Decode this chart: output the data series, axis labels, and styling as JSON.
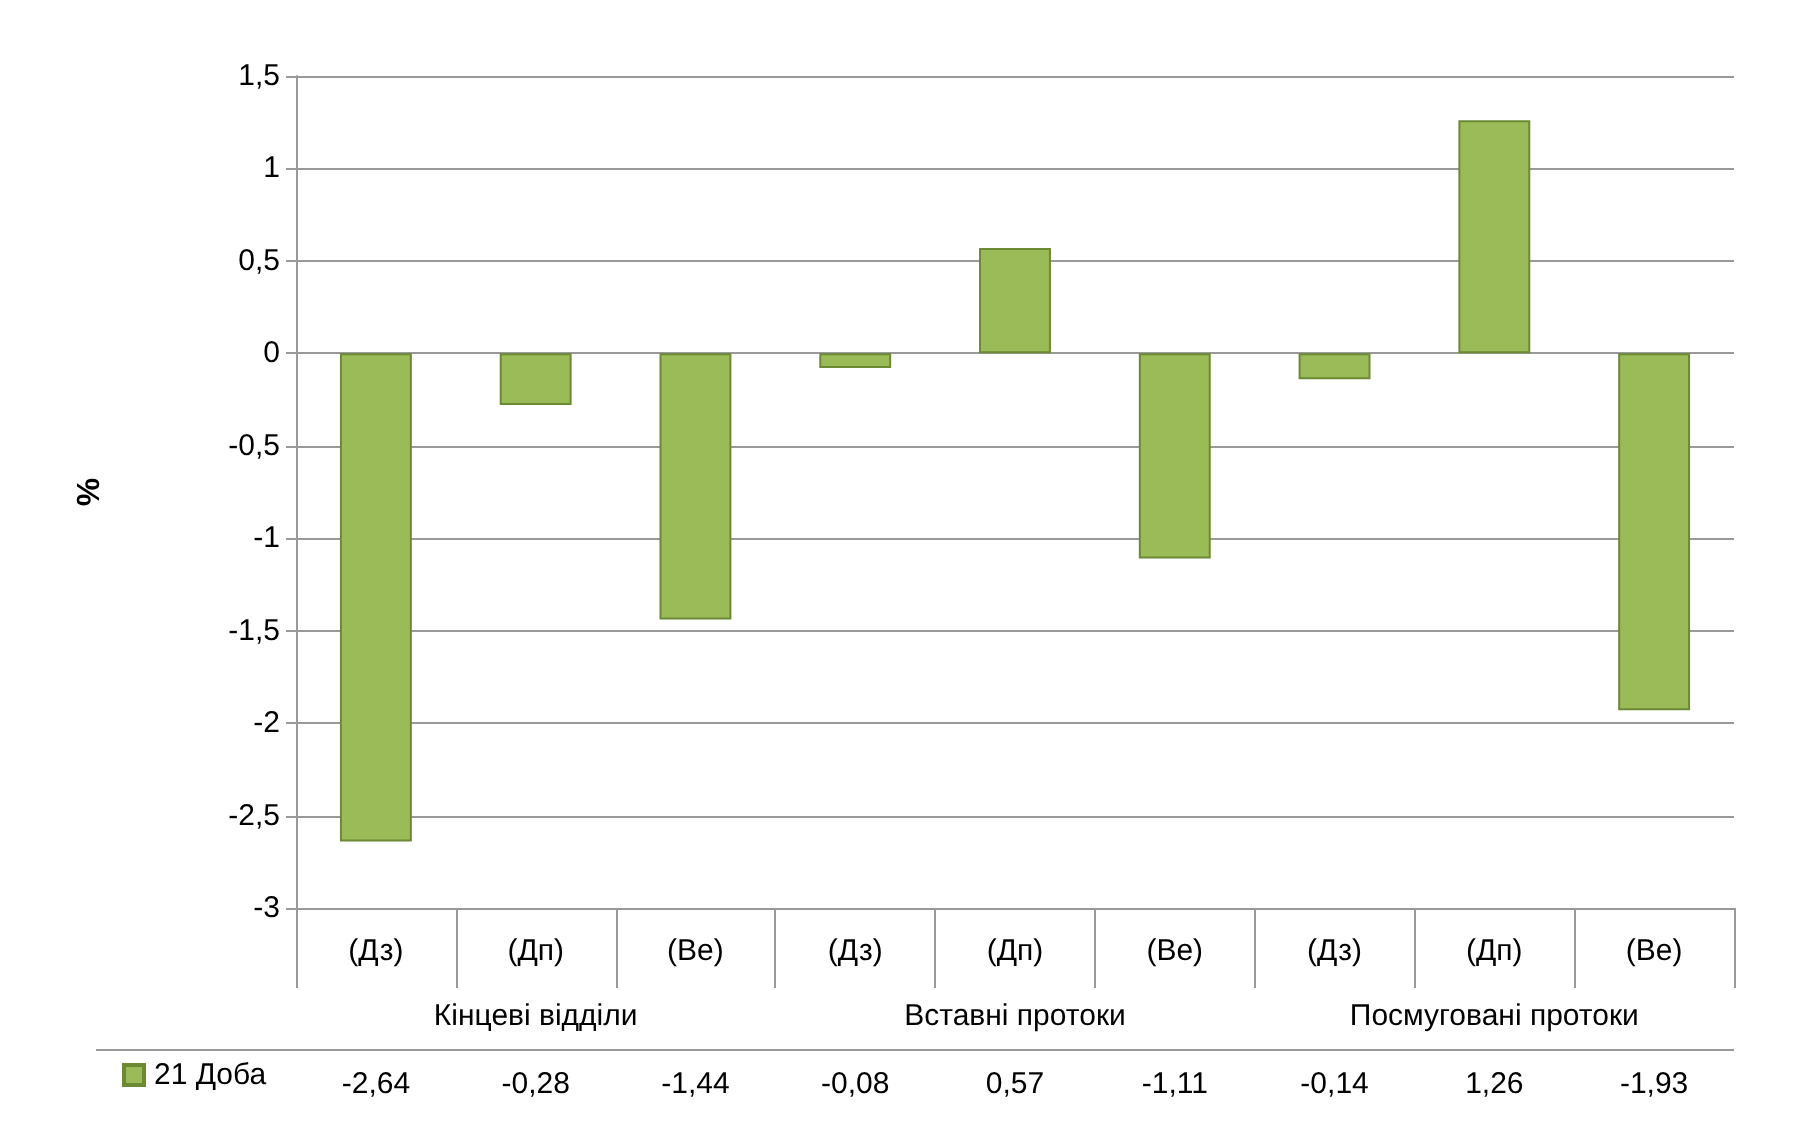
{
  "chart_data": {
    "type": "bar",
    "ylabel": "%",
    "categories": [
      "(Дз)",
      "(Дп)",
      "(Ве)",
      "(Дз)",
      "(Дп)",
      "(Ве)",
      "(Дз)",
      "(Дп)",
      "(Ве)"
    ],
    "series": [
      {
        "name": "21 Доба",
        "color": "#9bbb59",
        "values": [
          -2.64,
          -0.28,
          -1.44,
          -0.08,
          0.57,
          -1.11,
          -0.14,
          1.26,
          -1.93
        ],
        "value_labels": [
          "-2,64",
          "-0,28",
          "-1,44",
          "-0,08",
          "0,57",
          "-1,11",
          "-0,14",
          "1,26",
          "-1,93"
        ]
      }
    ],
    "annotations": [
      "Кінцеві відділи",
      "Вставні протоки",
      "Посмуговані протоки"
    ],
    "ylim": [
      -3,
      1.5
    ],
    "yticks": [
      {
        "value": -3,
        "label": "-3"
      },
      {
        "value": -2.5,
        "label": "-2,5"
      },
      {
        "value": -2,
        "label": "-2"
      },
      {
        "value": -1.5,
        "label": "-1,5"
      },
      {
        "value": -1,
        "label": "-1"
      },
      {
        "value": -0.5,
        "label": "-0,5"
      },
      {
        "value": 0,
        "label": "0"
      },
      {
        "value": 0.5,
        "label": "0,5"
      },
      {
        "value": 1,
        "label": "1"
      },
      {
        "value": 1.5,
        "label": "1,5"
      }
    ],
    "grid": "y",
    "legend": "bottom left"
  }
}
